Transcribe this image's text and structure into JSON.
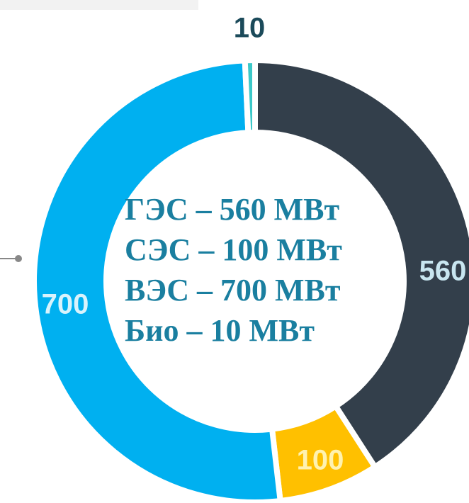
{
  "chart_data": {
    "type": "donut",
    "categories": [
      "ГЭС",
      "СЭС",
      "ВЭС",
      "Био"
    ],
    "values": [
      560,
      100,
      700,
      10
    ],
    "colors": [
      "#333f4b",
      "#ffc000",
      "#00b0f0",
      "#3cc8c8"
    ],
    "annotations": [
      "ГЭС – 560 МВт",
      "СЭС – 100 МВт",
      "ВЭС – 700 МВт",
      "Био – 10 МВт"
    ]
  }
}
